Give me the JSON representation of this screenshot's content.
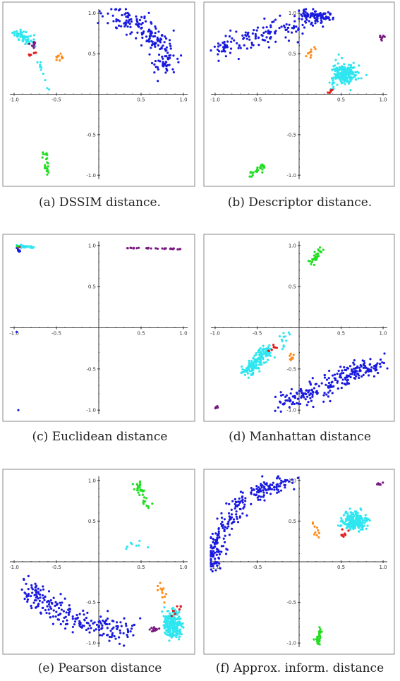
{
  "colors": {
    "blue": "#1a1adf",
    "cyan": "#2ee6f0",
    "green": "#22dd22",
    "orange": "#ff8c1a",
    "red": "#e01b1b",
    "purple": "#7a1a80",
    "frame": "#888888"
  },
  "chart_data": [
    {
      "id": "a",
      "type": "scatter",
      "caption": "(a)  DSSIM distance.",
      "xlim": [
        -1.05,
        1.05
      ],
      "ylim": [
        -1.05,
        1.05
      ],
      "xticks": [
        "-1.0",
        "-0.5",
        "0.5",
        "1.0"
      ],
      "yticks": [
        "-1.0",
        "-0.5",
        "0.5",
        "1.0"
      ],
      "clusters": [
        {
          "color": "blue",
          "n": 190,
          "arc": {
            "cx": -0.05,
            "cy": 0.4,
            "rx": 0.82,
            "ry": 0.58,
            "a0": 75,
            "a1": -10,
            "spread": 0.08
          }
        },
        {
          "color": "cyan",
          "n": 60,
          "line": {
            "x0": -0.98,
            "y0": 0.76,
            "x1": -0.82,
            "y1": 0.66,
            "spread": 0.035
          }
        },
        {
          "color": "cyan",
          "n": 10,
          "line": {
            "x0": -0.72,
            "y0": 0.45,
            "x1": -0.58,
            "y1": 0.05,
            "spread": 0.02
          }
        },
        {
          "color": "purple",
          "n": 8,
          "line": {
            "x0": -0.8,
            "y0": 0.64,
            "x1": -0.74,
            "y1": 0.6,
            "spread": 0.02
          }
        },
        {
          "color": "red",
          "n": 6,
          "line": {
            "x0": -0.8,
            "y0": 0.5,
            "x1": -0.76,
            "y1": 0.48,
            "spread": 0.02
          }
        },
        {
          "color": "orange",
          "n": 10,
          "line": {
            "x0": -0.52,
            "y0": 0.5,
            "x1": -0.45,
            "y1": 0.42,
            "spread": 0.03
          }
        },
        {
          "color": "green",
          "n": 22,
          "line": {
            "x0": -0.64,
            "y0": -0.72,
            "x1": -0.62,
            "y1": -0.98,
            "spread": 0.02
          }
        }
      ]
    },
    {
      "id": "b",
      "type": "scatter",
      "caption": "(b)  Descriptor  distance.",
      "xlim": [
        -1.05,
        1.05
      ],
      "ylim": [
        -1.05,
        1.05
      ],
      "xticks": [
        "-1.0",
        "-0.5",
        "0.5",
        "1.0"
      ],
      "yticks": [
        "-1.0",
        "-0.5",
        "0.5",
        "1.0"
      ],
      "clusters": [
        {
          "color": "blue",
          "n": 170,
          "line": {
            "x0": -1.0,
            "y0": 0.55,
            "x1": 0.2,
            "y1": 0.95,
            "spread": 0.07
          }
        },
        {
          "color": "blue",
          "n": 60,
          "line": {
            "x0": 0.05,
            "y0": 0.97,
            "x1": 0.4,
            "y1": 0.95,
            "spread": 0.025
          }
        },
        {
          "color": "cyan",
          "n": 200,
          "blob": {
            "cx": 0.55,
            "cy": 0.25,
            "rx": 0.12,
            "ry": 0.1
          }
        },
        {
          "color": "cyan",
          "n": 15,
          "line": {
            "x0": 0.5,
            "y0": 0.5,
            "x1": 0.4,
            "y1": 0.05,
            "spread": 0.04
          }
        },
        {
          "color": "purple",
          "n": 8,
          "line": {
            "x0": 0.96,
            "y0": 0.7,
            "x1": 1.0,
            "y1": 0.72,
            "spread": 0.015
          }
        },
        {
          "color": "orange",
          "n": 10,
          "line": {
            "x0": 0.1,
            "y0": 0.44,
            "x1": 0.22,
            "y1": 0.55,
            "spread": 0.03
          }
        },
        {
          "color": "red",
          "n": 6,
          "line": {
            "x0": 0.36,
            "y0": 0.02,
            "x1": 0.42,
            "y1": 0.07,
            "spread": 0.015
          }
        },
        {
          "color": "green",
          "n": 25,
          "line": {
            "x0": -0.58,
            "y0": -0.99,
            "x1": -0.42,
            "y1": -0.88,
            "spread": 0.02
          }
        }
      ]
    },
    {
      "id": "c",
      "type": "scatter",
      "caption": "(c)  Euclidean  distance",
      "xlim": [
        -1.05,
        1.05
      ],
      "ylim": [
        -1.05,
        1.05
      ],
      "xticks": [
        "-1.0",
        "-0.5",
        "0.5",
        "1.0"
      ],
      "yticks": [
        "-1.0",
        "-0.5",
        "0.5",
        "1.0"
      ],
      "clusters": [
        {
          "color": "purple",
          "n": 30,
          "line": {
            "x0": 0.32,
            "y0": 0.97,
            "x1": 1.0,
            "y1": 0.96,
            "spread": 0.004
          }
        },
        {
          "color": "cyan",
          "n": 40,
          "line": {
            "x0": -0.98,
            "y0": 0.99,
            "x1": -0.76,
            "y1": 0.98,
            "spread": 0.006
          }
        },
        {
          "color": "blue",
          "n": 8,
          "line": {
            "x0": -0.96,
            "y0": 0.97,
            "x1": -0.93,
            "y1": 0.9,
            "spread": 0.006
          }
        },
        {
          "color": "red",
          "n": 3,
          "line": {
            "x0": -0.95,
            "y0": 0.98,
            "x1": -0.93,
            "y1": 0.98,
            "spread": 0.003
          }
        },
        {
          "color": "green",
          "n": 3,
          "line": {
            "x0": -0.97,
            "y0": 0.99,
            "x1": -0.95,
            "y1": 0.99,
            "spread": 0.003
          }
        }
      ],
      "points": [
        {
          "color": "blue",
          "x": -0.97,
          "y": -0.05
        },
        {
          "color": "blue",
          "x": -0.95,
          "y": -1.0
        }
      ]
    },
    {
      "id": "d",
      "type": "scatter",
      "caption": "(d)  Manhattan  distance",
      "xlim": [
        -1.05,
        1.05
      ],
      "ylim": [
        -1.05,
        1.05
      ],
      "xticks": [
        "-1.0",
        "-0.5",
        "0.5",
        "1.0"
      ],
      "yticks": [
        "-1.0",
        "-0.5",
        "0.5",
        "1.0"
      ],
      "clusters": [
        {
          "color": "blue",
          "n": 240,
          "line": {
            "x0": -0.25,
            "y0": -0.95,
            "x1": 0.98,
            "y1": -0.4,
            "spread": 0.07
          }
        },
        {
          "color": "cyan",
          "n": 170,
          "line": {
            "x0": -0.65,
            "y0": -0.55,
            "x1": -0.35,
            "y1": -0.25,
            "spread": 0.04
          }
        },
        {
          "color": "cyan",
          "n": 12,
          "line": {
            "x0": -0.2,
            "y0": -0.25,
            "x1": -0.15,
            "y1": -0.05,
            "spread": 0.03
          }
        },
        {
          "color": "red",
          "n": 8,
          "line": {
            "x0": -0.35,
            "y0": -0.27,
            "x1": -0.28,
            "y1": -0.23,
            "spread": 0.015
          }
        },
        {
          "color": "orange",
          "n": 8,
          "line": {
            "x0": -0.12,
            "y0": -0.42,
            "x1": -0.08,
            "y1": -0.32,
            "spread": 0.02
          }
        },
        {
          "color": "green",
          "n": 30,
          "line": {
            "x0": 0.15,
            "y0": 0.78,
            "x1": 0.27,
            "y1": 1.0,
            "spread": 0.02
          }
        },
        {
          "color": "purple",
          "n": 8,
          "line": {
            "x0": -1.0,
            "y0": -0.98,
            "x1": -0.97,
            "y1": -0.95,
            "spread": 0.01
          }
        }
      ]
    },
    {
      "id": "e",
      "type": "scatter",
      "caption": "(e)  Pearson  distance",
      "xlim": [
        -1.05,
        1.05
      ],
      "ylim": [
        -1.05,
        1.05
      ],
      "xticks": [
        "-1.0",
        "-0.5",
        "0.5",
        "1.0"
      ],
      "yticks": [
        "-1.0",
        "-0.5",
        "0.5",
        "1.0"
      ],
      "clusters": [
        {
          "color": "blue",
          "n": 230,
          "arc": {
            "cx": 0.5,
            "cy": 0.1,
            "rx": 1.5,
            "ry": 0.95,
            "a0": 205,
            "a1": 268,
            "spread": 0.07
          }
        },
        {
          "color": "cyan",
          "n": 200,
          "blob": {
            "cx": 0.88,
            "cy": -0.78,
            "rx": 0.09,
            "ry": 0.13
          }
        },
        {
          "color": "cyan",
          "n": 8,
          "line": {
            "x0": 0.3,
            "y0": 0.2,
            "x1": 0.55,
            "y1": 0.22,
            "spread": 0.02
          }
        },
        {
          "color": "purple",
          "n": 12,
          "line": {
            "x0": 0.62,
            "y0": -0.85,
            "x1": 0.7,
            "y1": -0.82,
            "spread": 0.015
          }
        },
        {
          "color": "orange",
          "n": 12,
          "line": {
            "x0": 0.72,
            "y0": -0.25,
            "x1": 0.78,
            "y1": -0.48,
            "spread": 0.02
          }
        },
        {
          "color": "red",
          "n": 8,
          "line": {
            "x0": 0.85,
            "y0": -0.65,
            "x1": 0.95,
            "y1": -0.55,
            "spread": 0.02
          }
        },
        {
          "color": "green",
          "n": 35,
          "line": {
            "x0": 0.43,
            "y0": 1.0,
            "x1": 0.6,
            "y1": 0.65,
            "spread": 0.025
          }
        }
      ]
    },
    {
      "id": "f",
      "type": "scatter",
      "caption": "(f)  Approx.  inform.  distance",
      "xlim": [
        -1.05,
        1.05
      ],
      "ylim": [
        -1.05,
        1.05
      ],
      "xticks": [
        "-1.0",
        "-0.5",
        "0.5",
        "1.0"
      ],
      "yticks": [
        "-1.0",
        "-0.5",
        "0.5",
        "1.0"
      ],
      "clusters": [
        {
          "color": "blue",
          "n": 260,
          "arc": {
            "cx": -0.05,
            "cy": -0.2,
            "rx": 1.0,
            "ry": 1.18,
            "a0": 175,
            "a1": 95,
            "spread": 0.06
          }
        },
        {
          "color": "cyan",
          "n": 200,
          "blob": {
            "cx": 0.65,
            "cy": 0.5,
            "rx": 0.12,
            "ry": 0.1
          }
        },
        {
          "color": "purple",
          "n": 10,
          "line": {
            "x0": 0.95,
            "y0": 0.95,
            "x1": 1.0,
            "y1": 0.98,
            "spread": 0.015
          }
        },
        {
          "color": "orange",
          "n": 10,
          "line": {
            "x0": 0.17,
            "y0": 0.5,
            "x1": 0.23,
            "y1": 0.3,
            "spread": 0.02
          }
        },
        {
          "color": "red",
          "n": 8,
          "line": {
            "x0": 0.52,
            "y0": 0.32,
            "x1": 0.6,
            "y1": 0.42,
            "spread": 0.015
          }
        },
        {
          "color": "green",
          "n": 30,
          "line": {
            "x0": 0.25,
            "y0": -0.82,
            "x1": 0.22,
            "y1": -1.02,
            "spread": 0.015
          }
        }
      ]
    }
  ]
}
